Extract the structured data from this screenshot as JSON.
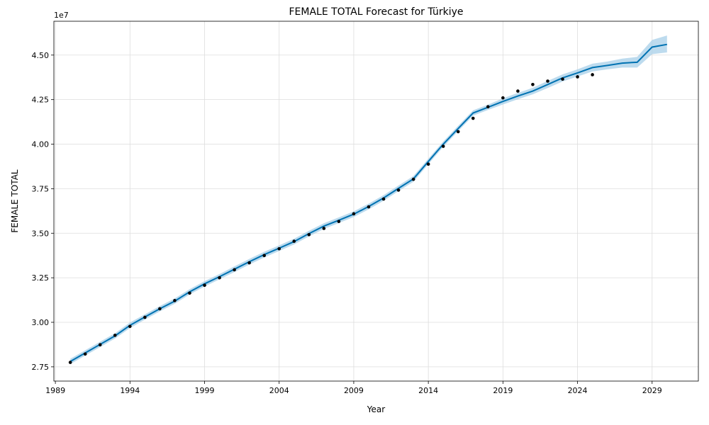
{
  "chart_data": {
    "type": "line",
    "title": "FEMALE TOTAL Forecast for Türkiye",
    "xlabel": "Year",
    "ylabel": "FEMALE TOTAL",
    "y_offset_text": "1e7",
    "xlim": [
      1988.9,
      2032.1
    ],
    "ylim": [
      26700000,
      46900000
    ],
    "x_ticks": [
      1989,
      1994,
      1999,
      2004,
      2009,
      2014,
      2019,
      2024,
      2029
    ],
    "y_ticks": [
      27500000,
      30000000,
      32500000,
      35000000,
      37500000,
      40000000,
      42500000,
      45000000
    ],
    "y_tick_labels": [
      "2.75",
      "3.00",
      "3.25",
      "3.50",
      "3.75",
      "4.00",
      "4.25",
      "4.50"
    ],
    "grid": true,
    "colors": {
      "forecast": "#0072B2",
      "band": "#a7cfe8",
      "actual": "#000000",
      "grid": "#dddddd"
    },
    "actual": {
      "x": [
        1990,
        1991,
        1992,
        1993,
        1994,
        1995,
        1996,
        1997,
        1998,
        1999,
        2000,
        2001,
        2002,
        2003,
        2004,
        2005,
        2006,
        2007,
        2008,
        2009,
        2010,
        2011,
        2012,
        2013,
        2014,
        2015,
        2016,
        2017,
        2018,
        2019,
        2020,
        2021,
        2022,
        2023,
        2024,
        2025
      ],
      "y": [
        27750000,
        28220000,
        28740000,
        29270000,
        29770000,
        30280000,
        30760000,
        31220000,
        31640000,
        32080000,
        32500000,
        32950000,
        33340000,
        33750000,
        34130000,
        34550000,
        34920000,
        35270000,
        35660000,
        36090000,
        36480000,
        36920000,
        37420000,
        38030000,
        38880000,
        39880000,
        40700000,
        41450000,
        42100000,
        42600000,
        42980000,
        43350000,
        43540000,
        43650000,
        43780000,
        43900000
      ]
    },
    "forecast": {
      "x": [
        1990,
        1991,
        1992,
        1993,
        1994,
        1995,
        1996,
        1997,
        1998,
        1999,
        2000,
        2001,
        2002,
        2003,
        2004,
        2005,
        2006,
        2007,
        2008,
        2009,
        2010,
        2011,
        2012,
        2013,
        2014,
        2015,
        2016,
        2017,
        2018,
        2019,
        2020,
        2021,
        2022,
        2023,
        2024,
        2025,
        2026,
        2027,
        2028,
        2029,
        2030
      ],
      "yhat": [
        27800000,
        28280000,
        28760000,
        29240000,
        29830000,
        30300000,
        30760000,
        31190000,
        31710000,
        32160000,
        32560000,
        32980000,
        33400000,
        33800000,
        34160000,
        34530000,
        34980000,
        35400000,
        35730000,
        36070000,
        36500000,
        36980000,
        37520000,
        38050000,
        39030000,
        40000000,
        40880000,
        41750000,
        42070000,
        42400000,
        42700000,
        42980000,
        43350000,
        43720000,
        44000000,
        44300000,
        44420000,
        44550000,
        44600000,
        45450000,
        45600000
      ],
      "lower": [
        27650000,
        28130000,
        28610000,
        29090000,
        29670000,
        30150000,
        30610000,
        31040000,
        31560000,
        32010000,
        32410000,
        32820000,
        33240000,
        33640000,
        34000000,
        34370000,
        34820000,
        35240000,
        35570000,
        35910000,
        36340000,
        36820000,
        37360000,
        37890000,
        38880000,
        39850000,
        40730000,
        41600000,
        41920000,
        42230000,
        42520000,
        42800000,
        43150000,
        43520000,
        43800000,
        44080000,
        44200000,
        44300000,
        44300000,
        45050000,
        45150000
      ],
      "upper": [
        27950000,
        28430000,
        28910000,
        29390000,
        29990000,
        30450000,
        30910000,
        31340000,
        31860000,
        32310000,
        32710000,
        33140000,
        33560000,
        33960000,
        34320000,
        34690000,
        35140000,
        35560000,
        35890000,
        36230000,
        36660000,
        37140000,
        37680000,
        38210000,
        39180000,
        40150000,
        41030000,
        41900000,
        42220000,
        42570000,
        42880000,
        43160000,
        43550000,
        43920000,
        44200000,
        44520000,
        44640000,
        44800000,
        44900000,
        45850000,
        46100000
      ]
    }
  }
}
